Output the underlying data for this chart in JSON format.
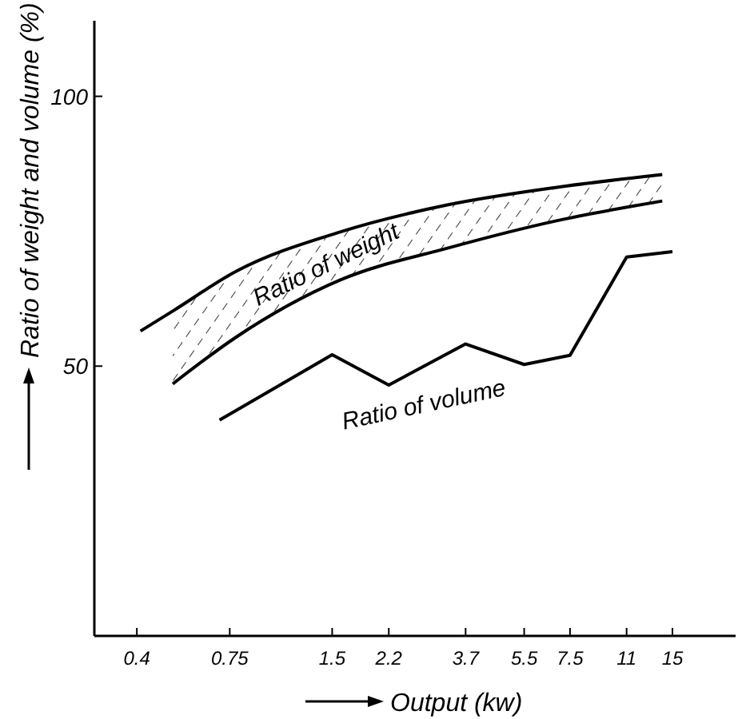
{
  "chart_data": {
    "type": "line",
    "xlabel": "Output (kw)",
    "ylabel": "Ratio of weight and volume (%)",
    "log": "x",
    "xlim": [
      0.3,
      23
    ],
    "xticks": [
      0.4,
      0.75,
      1.5,
      2.2,
      3.7,
      5.5,
      7.5,
      11,
      15
    ],
    "ylim": [
      0,
      114
    ],
    "yticks": [
      50,
      100
    ],
    "grid": false,
    "legend": false,
    "marker": "none",
    "line_style": "solid",
    "series": [
      {
        "name": "Ratio of weight",
        "color": "#000000",
        "x": [
          0.41,
          0.51,
          0.78,
          1.59,
          3.29,
          6.8,
          14
        ],
        "values": [
          56.5,
          60.2,
          67.5,
          74.9,
          79.9,
          83.1,
          85.5
        ]
      },
      {
        "color": "#000000",
        "x": [
          0.51,
          0.78,
          1.59,
          3.29,
          6.8,
          14
        ],
        "values": [
          46.7,
          55.3,
          66,
          71.9,
          76.9,
          80.6
        ]
      },
      {
        "name": "Ratio of volume",
        "color": "#000000",
        "x": [
          0.7,
          1.5,
          2.2,
          3.7,
          5.5,
          7.5,
          11,
          15
        ],
        "values": [
          40,
          52.1,
          46.5,
          54.1,
          50.3,
          52,
          70.2,
          71.2
        ]
      }
    ]
  }
}
